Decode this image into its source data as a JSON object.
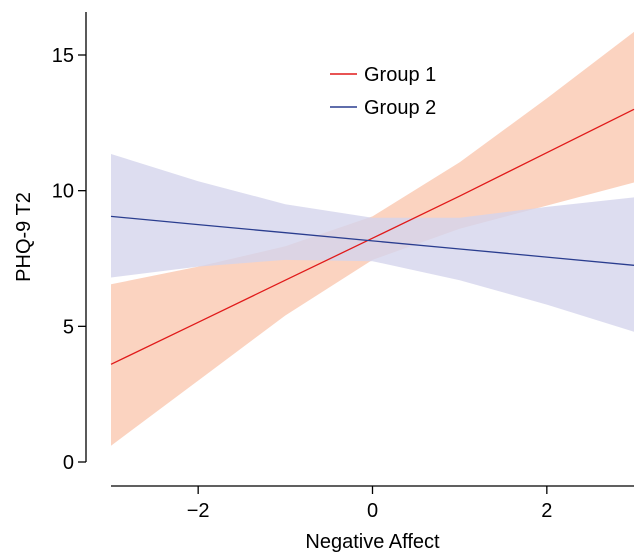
{
  "chart_data": {
    "type": "line",
    "title": "",
    "xlabel": "Negative Affect",
    "ylabel": "PHQ-9 T2",
    "xlim": [
      -3,
      3
    ],
    "ylim": [
      0,
      16
    ],
    "xticks": [
      -2,
      0,
      2
    ],
    "xtick_labels": [
      "−2",
      "0",
      "2"
    ],
    "yticks": [
      0,
      5,
      10,
      15
    ],
    "ytick_labels": [
      "0",
      "5",
      "10",
      "15"
    ],
    "grid": false,
    "legend_position": "top-center",
    "series": [
      {
        "name": "Group 1",
        "color": "#e01a1a",
        "band_color": "#fbd3c0",
        "x": [
          -3,
          -2,
          -1,
          0,
          1,
          2,
          3
        ],
        "y": [
          3.6,
          5.15,
          6.7,
          8.25,
          9.8,
          11.4,
          13.0
        ],
        "lower": [
          0.6,
          3.0,
          5.4,
          7.45,
          8.6,
          9.45,
          10.3
        ],
        "upper": [
          6.55,
          7.2,
          7.95,
          9.05,
          11.05,
          13.4,
          15.85
        ]
      },
      {
        "name": "Group 2",
        "color": "#2a3d8f",
        "band_color": "#d4d5ec",
        "x": [
          -3,
          -2,
          -1,
          0,
          1,
          2,
          3
        ],
        "y": [
          9.05,
          8.75,
          8.45,
          8.15,
          7.85,
          7.55,
          7.25
        ],
        "lower": [
          6.8,
          7.2,
          7.45,
          7.4,
          6.7,
          5.8,
          4.8
        ],
        "upper": [
          11.35,
          10.35,
          9.5,
          9.0,
          9.0,
          9.4,
          9.75
        ]
      }
    ]
  }
}
